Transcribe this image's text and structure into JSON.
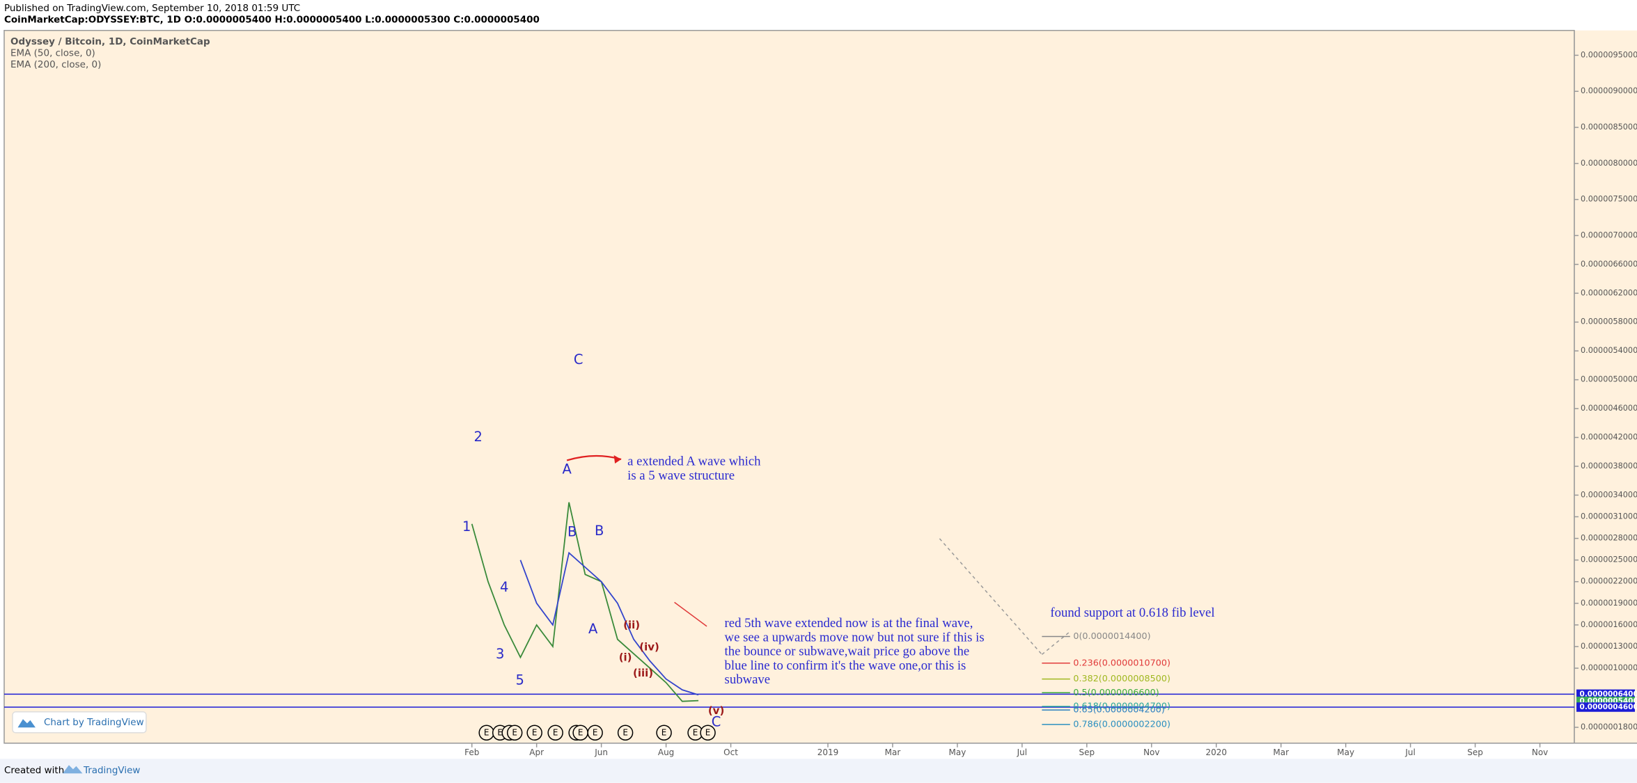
{
  "header": {
    "published": "Published on TradingView.com, September 10, 2018 01:59 UTC",
    "symbol": "CoinMarketCap:ODYSSEY:BTC, 1D  O:0.0000005400 H:0.0000005400 L:0.0000005300 C:0.0000005400"
  },
  "footer": {
    "created_with": "Created with",
    "brand": "TradingView",
    "badge": "Chart by TradingView"
  },
  "chart_data": {
    "type": "line",
    "title": "Odyssey / Bitcoin, 1D, CoinMarketCap",
    "indicators": [
      "EMA (50, close, 0)",
      "EMA (200, close, 0)"
    ],
    "categories": [
      null,
      null,
      "Feb",
      null,
      null,
      null,
      "Apr",
      null,
      null,
      null,
      "Jun",
      null,
      null,
      null,
      "Aug",
      null,
      null,
      null,
      "Oct",
      null,
      null,
      null,
      null,
      null,
      "2019",
      null,
      null,
      null,
      "Mar",
      null,
      null,
      null,
      "May",
      null,
      null,
      null,
      "Jul",
      null,
      null,
      null,
      "Sep",
      null,
      null,
      null,
      "Nov",
      null,
      null,
      null,
      "2020",
      null,
      null,
      null,
      "Mar",
      null,
      null,
      null,
      "May",
      null,
      null,
      null,
      "Jul",
      null,
      null,
      null,
      "Sep",
      null,
      null,
      null,
      "Nov",
      null
    ],
    "series": [
      {
        "name": "Odyssey / Bitcoin",
        "color": "#3a8a3a",
        "values": [
          null,
          null,
          3e-06,
          2.2e-06,
          1.6e-06,
          1.15e-06,
          1.6e-06,
          1.3e-06,
          3.3e-06,
          2.3e-06,
          2.2e-06,
          1.4e-06,
          1.2e-06,
          1e-06,
          8e-07,
          5.4e-07,
          5.5e-07,
          null,
          null,
          null,
          null,
          null,
          null,
          null,
          null,
          null,
          null,
          null,
          null,
          null,
          null,
          null,
          null,
          null,
          null,
          null,
          null,
          null,
          null,
          null,
          null,
          null,
          null,
          null,
          null,
          null,
          null,
          null,
          null,
          null,
          null,
          null,
          null,
          null,
          null,
          null,
          null,
          null,
          null,
          null,
          null,
          null,
          null,
          null,
          null,
          null,
          null,
          null,
          null,
          null
        ]
      },
      {
        "name": "EMA (50, close, 0)",
        "color": "#3344cc",
        "values": [
          null,
          null,
          null,
          null,
          null,
          2.5e-06,
          1.9e-06,
          1.6e-06,
          2.6e-06,
          2.4e-06,
          2.2e-06,
          1.9e-06,
          1.4e-06,
          1.1e-06,
          8.5e-07,
          7e-07,
          6.3e-07,
          null,
          null,
          null,
          null,
          null,
          null,
          null,
          null,
          null,
          null,
          null,
          null,
          null,
          null,
          null,
          null,
          null,
          null,
          null,
          null,
          null,
          null,
          null,
          null,
          null,
          null,
          null,
          null,
          null,
          null,
          null,
          null,
          null,
          null,
          null,
          null,
          null,
          null,
          null,
          null,
          null,
          null,
          null,
          null,
          null,
          null,
          null,
          null,
          null,
          null,
          null,
          null,
          null
        ]
      }
    ],
    "ylim": [
      -4e-08,
      9.83e-06
    ],
    "yticks": [
      {
        "value": 9.5e-06,
        "label": "0.0000095000"
      },
      {
        "value": 9e-06,
        "label": "0.0000090000"
      },
      {
        "value": 8.5e-06,
        "label": "0.0000085000"
      },
      {
        "value": 8e-06,
        "label": "0.0000080000"
      },
      {
        "value": 7.5e-06,
        "label": "0.0000075000"
      },
      {
        "value": 7e-06,
        "label": "0.0000070000"
      },
      {
        "value": 6.6e-06,
        "label": "0.0000066000"
      },
      {
        "value": 6.2e-06,
        "label": "0.0000062000"
      },
      {
        "value": 5.8e-06,
        "label": "0.0000058000"
      },
      {
        "value": 5.4e-06,
        "label": "0.0000054000"
      },
      {
        "value": 5e-06,
        "label": "0.0000050000"
      },
      {
        "value": 4.6e-06,
        "label": "0.0000046000"
      },
      {
        "value": 4.2e-06,
        "label": "0.0000042000"
      },
      {
        "value": 3.8e-06,
        "label": "0.0000038000"
      },
      {
        "value": 3.4e-06,
        "label": "0.0000034000"
      },
      {
        "value": 3.1e-06,
        "label": "0.0000031000"
      },
      {
        "value": 2.8e-06,
        "label": "0.0000028000"
      },
      {
        "value": 2.5e-06,
        "label": "0.0000025000"
      },
      {
        "value": 2.2e-06,
        "label": "0.0000022000"
      },
      {
        "value": 1.9e-06,
        "label": "0.0000019000"
      },
      {
        "value": 1.6e-06,
        "label": "0.0000016000"
      },
      {
        "value": 1.3e-06,
        "label": "0.0000013000"
      },
      {
        "value": 1e-06,
        "label": "0.0000010000"
      },
      {
        "value": 1.8e-07,
        "label": "0.0000001800"
      }
    ],
    "price_lines": [
      {
        "value": 6.4e-07,
        "label": "0.0000006400",
        "color": "#1c1cd6"
      },
      {
        "value": 5.4e-07,
        "label": "0.0000005400",
        "color": "#3aaa5a"
      },
      {
        "value": 4.6e-07,
        "label": "0.0000004600",
        "color": "#1c1cd6"
      }
    ],
    "fib_levels": [
      {
        "label": "0(0.0000014400)",
        "value": 1.44e-06,
        "color": "#888888"
      },
      {
        "label": "0.236(0.0000010700)",
        "value": 1.07e-06,
        "color": "#e03a3a"
      },
      {
        "label": "0.382(0.0000008500)",
        "value": 8.5e-07,
        "color": "#a0b820"
      },
      {
        "label": "0.5(0.0000006600)",
        "value": 6.6e-07,
        "color": "#3aaa3a"
      },
      {
        "label": "0.618(0.0000004700)",
        "value": 4.7e-07,
        "color": "#26a69a"
      },
      {
        "label": "0.65(0.0000004200)",
        "value": 4.2e-07,
        "color": "#2a7fc0"
      },
      {
        "label": "0.786(0.0000002200)",
        "value": 2.2e-07,
        "color": "#2a8fc0"
      }
    ],
    "wave_labels": [
      "1",
      "2",
      "3",
      "4",
      "5",
      "A",
      "B",
      "C",
      "B",
      "A",
      "C"
    ],
    "subwave_labels": [
      "(i)",
      "(ii)",
      "(iii)",
      "(iv)",
      "(v)"
    ],
    "notes": [
      [
        "a extended A wave which",
        "is a 5 wave structure"
      ],
      [
        "red 5th wave extended now is at the final wave,",
        "we see a upwards move now but not sure if this is",
        "the bounce or subwave,wait price go above the",
        "blue line to confirm it's the wave one,or this is",
        "subwave"
      ],
      [
        "found support at 0.618 fib level"
      ]
    ],
    "event_marker": "E"
  }
}
